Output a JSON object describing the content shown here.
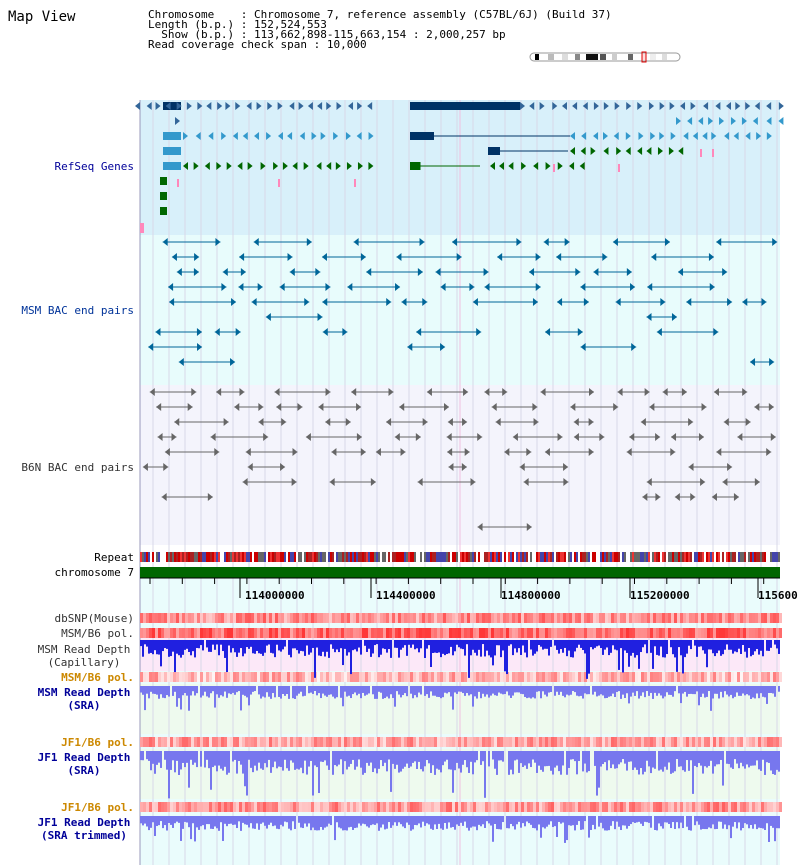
{
  "page": {
    "title": "Map View"
  },
  "info": {
    "chromosome_label": "Chromosome",
    "chromosome_value": "Chromosome 7, reference assembly (C57BL/6J) (Build 37)",
    "length_label": "Length (b.p.)",
    "length_value": "152,524,553",
    "show_label": "Show (b.p.)",
    "show_value": "113,662,898-115,663,154 : 2,000,257 bp",
    "coverage_label": "Read coverage check span",
    "coverage_value": "10,000"
  },
  "tracks": {
    "refseq": "RefSeq Genes",
    "msm_bac": "MSM BAC end pairs",
    "b6n_bac": "B6N BAC end pairs",
    "repeat": "Repeat",
    "chromosome": "chromosome 7",
    "dbsnp": "dbSNP(Mouse)",
    "msm_b6_pol_1": "MSM/B6 pol.",
    "msm_read_depth_cap_1": "MSM Read Depth",
    "msm_read_depth_cap_2": "(Capillary)",
    "msm_b6_pol_2": "MSM/B6 pol.",
    "msm_read_depth_sra_1": "MSM Read Depth",
    "msm_read_depth_sra_2": "(SRA)",
    "jf1_b6_pol_1": "JF1/B6 pol.",
    "jf1_read_depth_sra_1": "JF1 Read Depth",
    "jf1_read_depth_sra_2": "(SRA)",
    "jf1_b6_pol_2": "JF1/B6 pol.",
    "jf1_read_depth_trim_1": "JF1 Read Depth",
    "jf1_read_depth_trim_2": "(SRA trimmed)"
  },
  "axis": {
    "ticks": [
      "114000000",
      "114400000",
      "114800000",
      "115200000",
      "115600"
    ]
  },
  "colors": {
    "refseq_bg": "#d8f0fa",
    "msm_bg": "#e8fcfc",
    "b6n_bg": "#f4f4fc",
    "refseq_label": "#000099",
    "msm_label": "#003399",
    "b6n_label": "#333333",
    "pol_label": "#cc8800",
    "sra_label": "#000099",
    "chromosome": "#006600",
    "depth_cap": "#2020e0",
    "depth_sra": "#7777ee"
  }
}
